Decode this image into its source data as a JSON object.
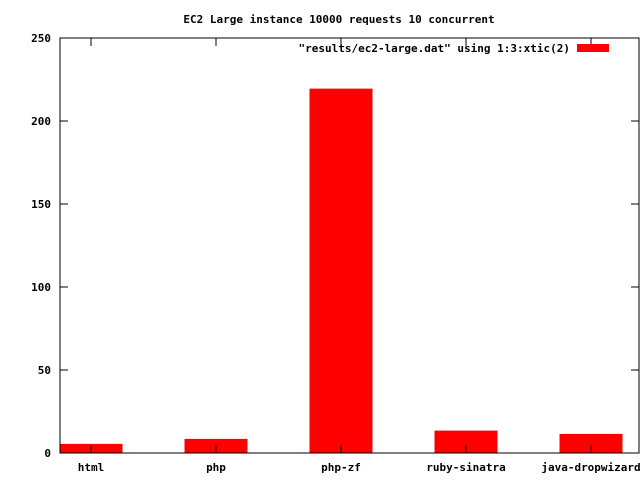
{
  "chart_data": {
    "type": "bar",
    "title": "EC2 Large instance 10000 requests 10 concurrent",
    "xlabel": "",
    "ylabel": "",
    "categories": [
      "html",
      "php",
      "php-zf",
      "ruby-sinatra",
      "java-dropwizard"
    ],
    "series": [
      {
        "name": "\"results/ec2-large.dat\" using 1:3:xtic(2)",
        "values": [
          5.5,
          8.5,
          219.5,
          13.5,
          11.5
        ],
        "color": "#ff0000"
      }
    ],
    "ylim": [
      0,
      250
    ],
    "yticks": [
      "0",
      "50",
      "100",
      "150",
      "200",
      "250"
    ],
    "grid": false,
    "legend_position": "top-right"
  }
}
